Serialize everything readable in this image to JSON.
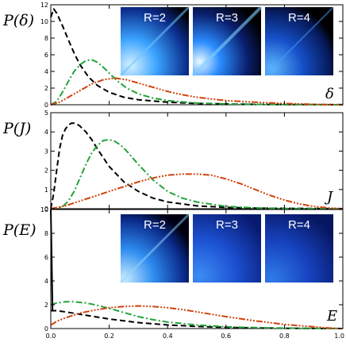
{
  "colors": {
    "series_black": "#000000",
    "series_green": "#22a33a",
    "series_red": "#d0430e",
    "inset_dark": "#000000",
    "inset_bright": "#3a9bff"
  },
  "inset_labels": [
    "R=2",
    "R=3",
    "R=4"
  ],
  "chart_data": [
    {
      "type": "line",
      "ylabel": "P(δ)",
      "corner_label": "δ",
      "xlim": [
        0,
        1
      ],
      "ylim": [
        0,
        12
      ],
      "xticks": [],
      "yticks": [
        "0",
        "2",
        "4",
        "6",
        "8",
        "10",
        "12"
      ],
      "grid": false,
      "series": [
        {
          "style": "dashed",
          "color": "black",
          "x": [
            0,
            0.01,
            0.02,
            0.04,
            0.06,
            0.08,
            0.1,
            0.13,
            0.16,
            0.2,
            0.25,
            0.3,
            0.4,
            0.5,
            0.6,
            0.7,
            0.8,
            0.9,
            1.0
          ],
          "y": [
            10.5,
            11.5,
            11.0,
            9.5,
            7.8,
            6.2,
            4.8,
            3.3,
            2.3,
            1.5,
            0.9,
            0.6,
            0.3,
            0.15,
            0.1,
            0.05,
            0.03,
            0.02,
            0.01
          ]
        },
        {
          "style": "dash-dot",
          "color": "green",
          "x": [
            0,
            0.02,
            0.04,
            0.06,
            0.08,
            0.1,
            0.12,
            0.14,
            0.16,
            0.18,
            0.2,
            0.23,
            0.26,
            0.3,
            0.35,
            0.4,
            0.5,
            0.6,
            0.7,
            0.8,
            1.0
          ],
          "y": [
            0,
            0.4,
            1.5,
            2.8,
            4.0,
            4.8,
            5.3,
            5.4,
            5.1,
            4.5,
            3.8,
            2.8,
            2.0,
            1.3,
            0.8,
            0.5,
            0.2,
            0.1,
            0.05,
            0.02,
            0
          ]
        },
        {
          "style": "dash-dot-dot-dot",
          "color": "red",
          "x": [
            0,
            0.03,
            0.06,
            0.1,
            0.14,
            0.18,
            0.22,
            0.26,
            0.3,
            0.35,
            0.4,
            0.45,
            0.5,
            0.55,
            0.6,
            0.7,
            0.8,
            0.9,
            1.0
          ],
          "y": [
            0,
            0.3,
            0.9,
            1.7,
            2.5,
            3.0,
            3.2,
            3.0,
            2.6,
            2.1,
            1.6,
            1.2,
            0.9,
            0.7,
            0.5,
            0.3,
            0.15,
            0.05,
            0
          ]
        }
      ]
    },
    {
      "type": "line",
      "ylabel": "P(J)",
      "corner_label": "J",
      "xlim": [
        0,
        1
      ],
      "ylim": [
        0,
        5
      ],
      "xticks": [],
      "yticks": [
        "0",
        "1",
        "2",
        "3",
        "4",
        "5"
      ],
      "grid": false,
      "series": [
        {
          "style": "dashed",
          "color": "black",
          "x": [
            0,
            0.01,
            0.02,
            0.03,
            0.04,
            0.05,
            0.06,
            0.07,
            0.08,
            0.09,
            0.1,
            0.12,
            0.14,
            0.16,
            0.2,
            0.25,
            0.3,
            0.35,
            0.4,
            0.5,
            0.6,
            0.7,
            1.0
          ],
          "y": [
            0,
            0.8,
            2.0,
            3.1,
            3.8,
            4.15,
            4.35,
            4.45,
            4.45,
            4.4,
            4.3,
            4.0,
            3.6,
            3.1,
            2.2,
            1.4,
            0.9,
            0.55,
            0.35,
            0.15,
            0.07,
            0.03,
            0
          ]
        },
        {
          "style": "dash-dot",
          "color": "green",
          "x": [
            0,
            0.04,
            0.06,
            0.08,
            0.1,
            0.12,
            0.14,
            0.16,
            0.18,
            0.2,
            0.22,
            0.24,
            0.26,
            0.3,
            0.35,
            0.4,
            0.45,
            0.5,
            0.6,
            0.7,
            0.8,
            1.0
          ],
          "y": [
            0,
            0.1,
            0.4,
            0.9,
            1.6,
            2.3,
            2.9,
            3.3,
            3.55,
            3.6,
            3.5,
            3.3,
            3.0,
            2.3,
            1.5,
            0.9,
            0.55,
            0.35,
            0.12,
            0.04,
            0.01,
            0
          ]
        },
        {
          "style": "dash-dot-dot-dot",
          "color": "red",
          "x": [
            0,
            0.05,
            0.1,
            0.15,
            0.2,
            0.25,
            0.3,
            0.35,
            0.4,
            0.45,
            0.5,
            0.55,
            0.6,
            0.65,
            0.7,
            0.75,
            0.8,
            0.85,
            0.9,
            0.95,
            1.0
          ],
          "y": [
            0,
            0.15,
            0.4,
            0.65,
            0.9,
            1.15,
            1.4,
            1.6,
            1.75,
            1.8,
            1.8,
            1.75,
            1.55,
            1.3,
            1.0,
            0.7,
            0.45,
            0.25,
            0.12,
            0.04,
            0
          ]
        }
      ]
    },
    {
      "type": "line",
      "ylabel": "P(E)",
      "corner_label": "E",
      "xlim": [
        0,
        1
      ],
      "ylim": [
        0,
        10
      ],
      "xticks": [
        "0.0",
        "0.2",
        "0.4",
        "0.6",
        "0.8",
        "1.0"
      ],
      "yticks": [
        "0",
        "2",
        "4",
        "6",
        "8",
        "10"
      ],
      "grid": false,
      "series": [
        {
          "style": "dashed",
          "color": "black",
          "x": [
            0,
            0.02,
            0.05,
            0.1,
            0.15,
            0.2,
            0.3,
            0.4,
            0.5,
            0.6,
            0.7,
            0.8,
            0.9,
            1.0
          ],
          "y": [
            1.5,
            1.5,
            1.4,
            1.2,
            1.0,
            0.8,
            0.5,
            0.3,
            0.18,
            0.1,
            0.05,
            0.02,
            0.01,
            0
          ]
        },
        {
          "style": "dash-dot",
          "color": "green",
          "x": [
            0,
            0.02,
            0.05,
            0.08,
            0.12,
            0.15,
            0.2,
            0.25,
            0.3,
            0.35,
            0.4,
            0.5,
            0.6,
            0.7,
            0.8,
            0.9,
            1.0
          ],
          "y": [
            2.0,
            2.15,
            2.25,
            2.25,
            2.15,
            2.0,
            1.7,
            1.35,
            1.0,
            0.75,
            0.55,
            0.3,
            0.15,
            0.08,
            0.04,
            0.02,
            0
          ]
        },
        {
          "style": "dash-dot-dot-dot",
          "color": "red",
          "x": [
            0,
            0.02,
            0.05,
            0.1,
            0.15,
            0.2,
            0.25,
            0.3,
            0.35,
            0.4,
            0.45,
            0.5,
            0.55,
            0.6,
            0.7,
            0.8,
            0.9,
            0.95,
            1.0
          ],
          "y": [
            0.3,
            0.6,
            0.9,
            1.3,
            1.55,
            1.75,
            1.85,
            1.9,
            1.85,
            1.75,
            1.6,
            1.4,
            1.2,
            1.0,
            0.65,
            0.35,
            0.15,
            0.05,
            0
          ]
        },
        {
          "style": "solid",
          "color": "black",
          "x": [
            0,
            0.003,
            0.006
          ],
          "y": [
            10,
            6,
            1.5
          ]
        }
      ]
    }
  ]
}
